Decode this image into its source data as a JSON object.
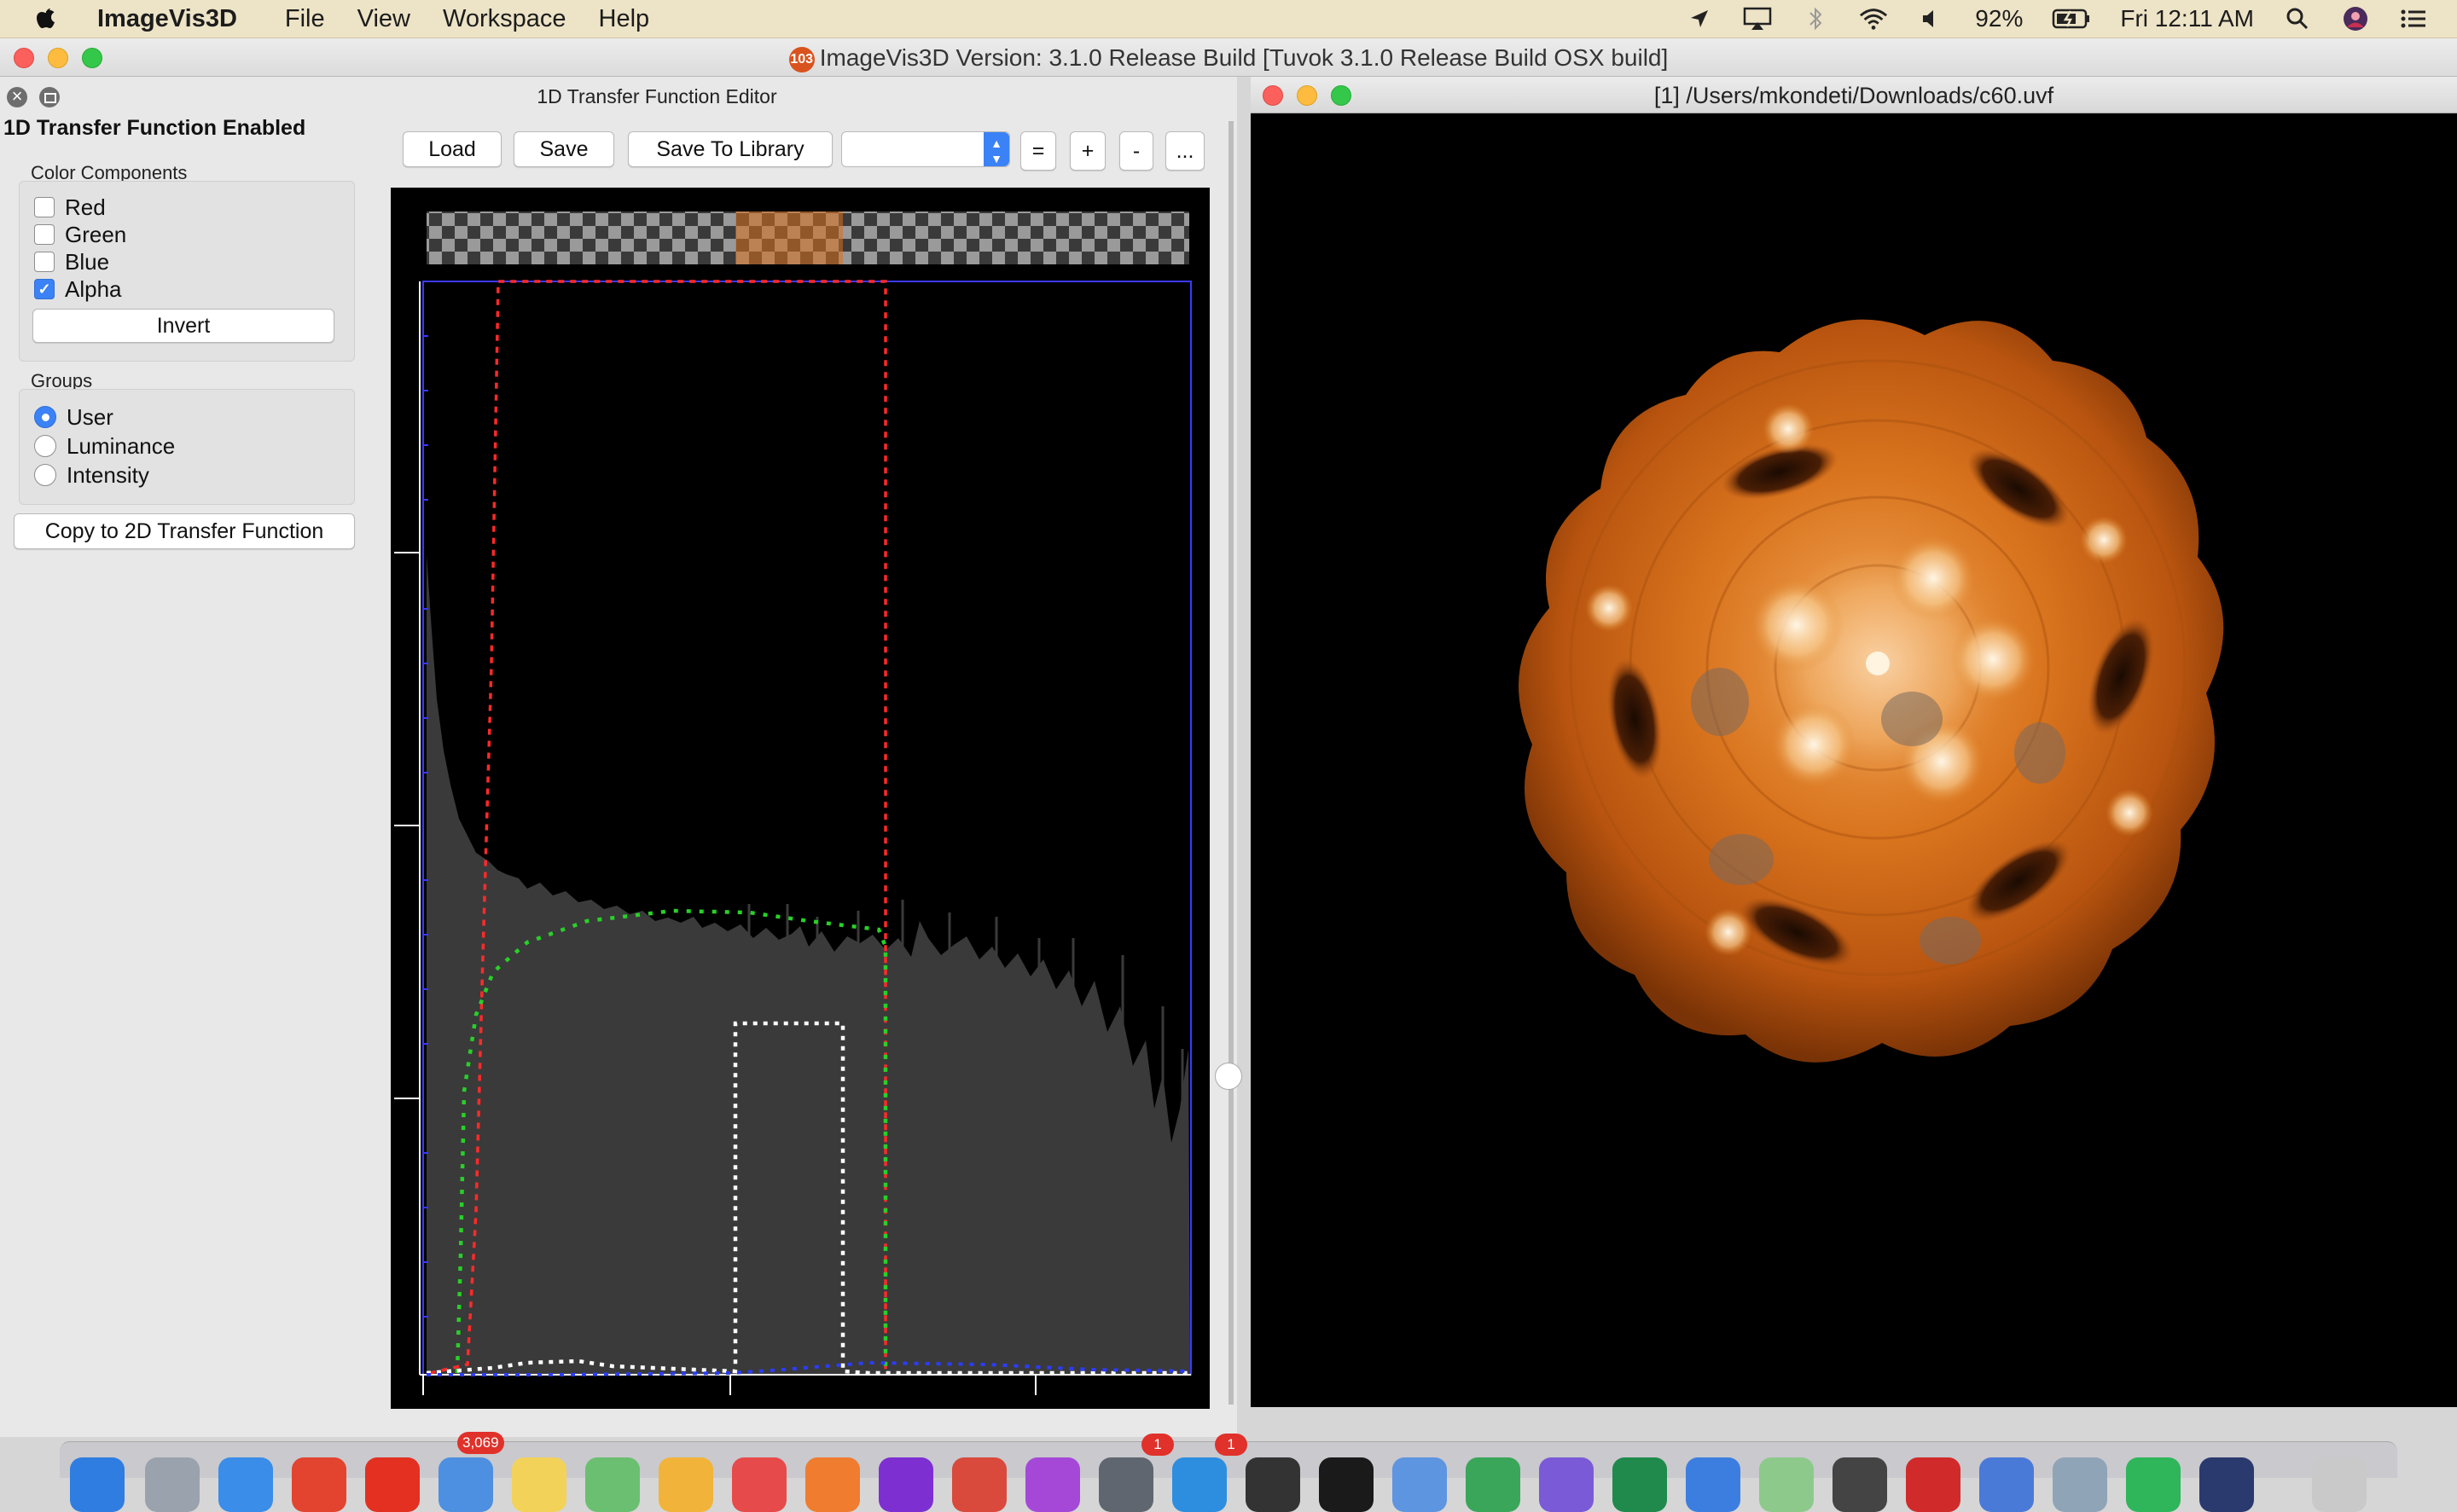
{
  "menubar": {
    "app_name": "ImageVis3D",
    "items": [
      "File",
      "View",
      "Workspace",
      "Help"
    ],
    "battery": "92%",
    "clock": "Fri 12:11 AM"
  },
  "window": {
    "title": "ImageVis3D Version: 3.1.0 Release Build [Tuvok 3.1.0 Release Build OSX build]",
    "badge": "103"
  },
  "tf_editor": {
    "title": "1D Transfer Function Editor",
    "enabled_label": "1D Transfer Function Enabled",
    "color_components_label": "Color Components",
    "components": [
      {
        "label": "Red",
        "checked": false
      },
      {
        "label": "Green",
        "checked": false
      },
      {
        "label": "Blue",
        "checked": false
      },
      {
        "label": "Alpha",
        "checked": true
      }
    ],
    "invert_label": "Invert",
    "groups_label": "Groups",
    "groups": [
      {
        "label": "User",
        "selected": true
      },
      {
        "label": "Luminance",
        "selected": false
      },
      {
        "label": "Intensity",
        "selected": false
      }
    ],
    "copy_label": "Copy to 2D Transfer Function",
    "toolbar": {
      "load": "Load",
      "save": "Save",
      "save_library": "Save To Library",
      "preset_value": "",
      "equal": "=",
      "plus": "+",
      "minus": "-",
      "more": "..."
    }
  },
  "render": {
    "title": "[1] /Users/mkondeti/Downloads/c60.uvf"
  },
  "dock": {
    "mail_badge": "3,069",
    "badge_one": "1",
    "badge_two": "1"
  },
  "colors": {
    "accent": "#3b82f6",
    "red_curve": "#ff2a2a",
    "green_curve": "#28d028",
    "blue_curve": "#2b3cff",
    "alpha_curve": "#ffffff",
    "render_orange": "#e07a22"
  }
}
